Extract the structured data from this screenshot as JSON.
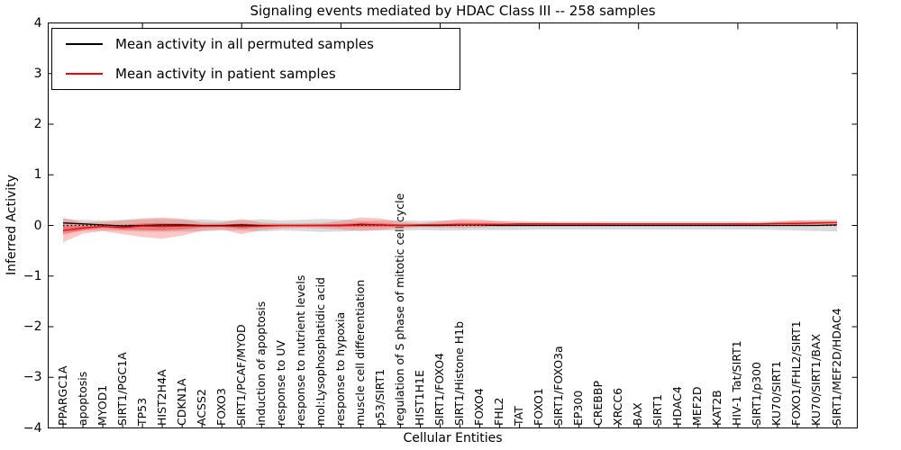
{
  "title": "Signaling events mediated by HDAC Class III -- 258 samples",
  "legend": {
    "items": [
      {
        "label": "Mean activity in all permuted samples",
        "color": "#000000"
      },
      {
        "label": "Mean activity in patient samples",
        "color": "#ff0000"
      }
    ]
  },
  "axes": {
    "xlabel": "Cellular Entities",
    "ylabel": "Inferred Activity",
    "yticklabels": [
      "4",
      "3",
      "2",
      "1",
      "0",
      "−1",
      "−2",
      "−3",
      "−4"
    ],
    "yticks": [
      4,
      3,
      2,
      1,
      0,
      -1,
      -2,
      -3,
      -4
    ]
  },
  "chart_data": {
    "type": "line",
    "title": "Signaling events mediated by HDAC Class III -- 258 samples",
    "xlabel": "Cellular Entities",
    "ylabel": "Inferred Activity",
    "ylim": [
      -4,
      4
    ],
    "yticks": [
      -4,
      -3,
      -2,
      -1,
      0,
      1,
      2,
      3,
      4
    ],
    "grid": false,
    "legend_position": "upper left",
    "categories": [
      "PPARGC1A",
      "apoptosis",
      "MYOD1",
      "SIRT1/PGC1A",
      "TP53",
      "HIST2H4A",
      "CDKN1A",
      "ACSS2",
      "FOXO3",
      "SIRT1/PCAF/MYOD",
      "induction of apoptosis",
      "response to UV",
      "response to nutrient levels",
      "mol:Lysophosphatidic acid",
      "response to hypoxia",
      "muscle cell differentiation",
      "p53/SIRT1",
      "regulation of S phase of mitotic cell cycle",
      "HIST1H1E",
      "SIRT1/FOXO4",
      "SIRT1/Histone H1b",
      "FOXO4",
      "FHL2",
      "TAT",
      "FOXO1",
      "SIRT1/FOXO3a",
      "EP300",
      "CREBBP",
      "XRCC6",
      "BAX",
      "SIRT1",
      "HDAC4",
      "MEF2D",
      "KAT2B",
      "HIV-1 Tat/SIRT1",
      "SIRT1/p300",
      "KU70/SIRT1",
      "FOXO1/FHL2/SIRT1",
      "KU70/SIRT1/BAX",
      "SIRT1/MEF2D/HDAC4"
    ],
    "series": [
      {
        "name": "Mean activity in all permuted samples",
        "color": "#000000",
        "style": "solid",
        "values": [
          0.05,
          0.03,
          0.01,
          -0.01,
          0.0,
          0.01,
          0.01,
          0.0,
          0.0,
          0.01,
          0.0,
          0.0,
          0.0,
          0.0,
          0.0,
          0.02,
          0.01,
          0.0,
          0.0,
          0.0,
          0.01,
          0.01,
          0.0,
          0.0,
          0.0,
          0.0,
          0.0,
          0.0,
          0.0,
          0.0,
          0.0,
          0.0,
          0.0,
          0.0,
          0.0,
          0.0,
          0.0,
          0.0,
          0.0,
          0.01
        ]
      },
      {
        "name": "Mean activity in patient samples",
        "color": "#ff0000",
        "style": "solid",
        "values": [
          -0.1,
          -0.05,
          -0.02,
          -0.04,
          -0.01,
          -0.02,
          -0.01,
          -0.01,
          -0.01,
          -0.02,
          -0.01,
          0.0,
          0.0,
          0.0,
          0.0,
          0.01,
          0.01,
          0.0,
          0.01,
          0.01,
          0.02,
          0.02,
          0.02,
          0.03,
          0.03,
          0.03,
          0.03,
          0.03,
          0.03,
          0.03,
          0.03,
          0.03,
          0.03,
          0.03,
          0.03,
          0.03,
          0.04,
          0.04,
          0.05,
          0.06
        ]
      }
    ],
    "bands": [
      {
        "name": "permuted samples activity range",
        "color": "#999999",
        "opacity": 0.35,
        "upper": [
          0.13,
          0.11,
          0.1,
          0.11,
          0.12,
          0.13,
          0.12,
          0.12,
          0.1,
          0.1,
          0.12,
          0.1,
          0.11,
          0.13,
          0.12,
          0.1,
          0.1,
          0.1,
          0.09,
          0.1,
          0.1,
          0.09,
          0.09,
          0.09,
          0.08,
          0.08,
          0.08,
          0.08,
          0.08,
          0.08,
          0.08,
          0.08,
          0.08,
          0.08,
          0.08,
          0.08,
          0.09,
          0.1,
          0.11,
          0.12
        ],
        "lower": [
          -0.13,
          -0.11,
          -0.1,
          -0.11,
          -0.12,
          -0.13,
          -0.12,
          -0.12,
          -0.1,
          -0.1,
          -0.12,
          -0.1,
          -0.11,
          -0.13,
          -0.12,
          -0.1,
          -0.1,
          -0.1,
          -0.09,
          -0.1,
          -0.1,
          -0.09,
          -0.09,
          -0.09,
          -0.08,
          -0.08,
          -0.08,
          -0.08,
          -0.08,
          -0.08,
          -0.08,
          -0.08,
          -0.08,
          -0.08,
          -0.08,
          -0.08,
          -0.09,
          -0.1,
          -0.11,
          -0.12
        ]
      },
      {
        "name": "patient samples activity range (outer)",
        "color": "#ff3333",
        "opacity": 0.28,
        "upper": [
          0.15,
          0.06,
          0.07,
          0.1,
          0.14,
          0.16,
          0.13,
          0.06,
          0.06,
          0.13,
          0.06,
          0.04,
          0.04,
          0.05,
          0.09,
          0.16,
          0.14,
          0.07,
          0.04,
          0.08,
          0.13,
          0.12,
          0.08,
          0.06,
          0.06,
          0.05,
          0.05,
          0.05,
          0.04,
          0.04,
          0.04,
          0.04,
          0.04,
          0.04,
          0.05,
          0.05,
          0.07,
          0.1,
          0.09,
          0.08
        ],
        "lower": [
          -0.33,
          -0.16,
          -0.11,
          -0.17,
          -0.23,
          -0.26,
          -0.2,
          -0.1,
          -0.08,
          -0.17,
          -0.09,
          -0.06,
          -0.05,
          -0.06,
          -0.08,
          -0.11,
          -0.09,
          -0.05,
          -0.03,
          -0.04,
          -0.05,
          -0.04,
          -0.02,
          -0.01,
          -0.01,
          -0.01,
          -0.01,
          0.0,
          0.0,
          0.0,
          0.0,
          0.0,
          0.0,
          0.0,
          0.0,
          0.0,
          0.0,
          0.0,
          0.01,
          0.02
        ]
      },
      {
        "name": "patient samples activity range (inner)",
        "color": "#ee1111",
        "opacity": 0.35,
        "upper": [
          0.0,
          -0.01,
          0.01,
          0.01,
          0.04,
          0.05,
          0.04,
          0.01,
          0.01,
          0.04,
          0.01,
          0.01,
          0.01,
          0.02,
          0.03,
          0.06,
          0.05,
          0.02,
          0.02,
          0.03,
          0.05,
          0.05,
          0.04,
          0.04,
          0.04,
          0.04,
          0.04,
          0.04,
          0.04,
          0.04,
          0.04,
          0.04,
          0.04,
          0.04,
          0.04,
          0.04,
          0.05,
          0.06,
          0.06,
          0.07
        ],
        "lower": [
          -0.18,
          -0.09,
          -0.05,
          -0.08,
          -0.09,
          -0.1,
          -0.08,
          -0.04,
          -0.03,
          -0.07,
          -0.04,
          -0.02,
          -0.02,
          -0.02,
          -0.03,
          -0.03,
          -0.03,
          -0.02,
          -0.01,
          -0.01,
          0.0,
          0.0,
          0.0,
          0.01,
          0.01,
          0.01,
          0.01,
          0.01,
          0.02,
          0.02,
          0.02,
          0.02,
          0.02,
          0.02,
          0.02,
          0.02,
          0.02,
          0.02,
          0.03,
          0.04
        ]
      }
    ],
    "zero_line": {
      "color": "#000000",
      "style": "dotted",
      "y": 0
    },
    "top_tick_interval": 5
  }
}
